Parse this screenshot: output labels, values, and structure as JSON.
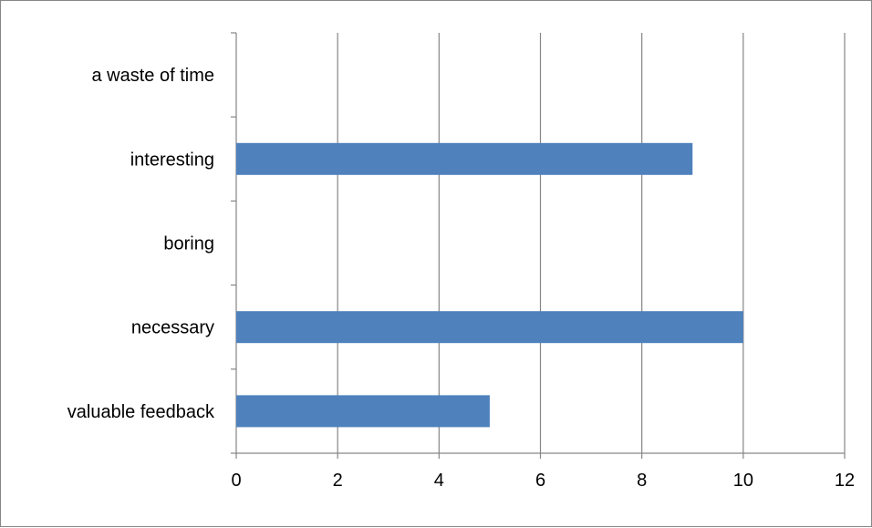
{
  "chart_data": {
    "type": "bar",
    "orientation": "horizontal",
    "title": "",
    "xlabel": "",
    "ylabel": "",
    "categories": [
      "valuable feedback",
      "necessary",
      "boring",
      "interesting",
      "a waste of time"
    ],
    "values": [
      5,
      10,
      0,
      9,
      0
    ],
    "xlim": [
      0,
      12
    ],
    "xticks": [
      0,
      2,
      4,
      6,
      8,
      10,
      12
    ],
    "grid": "vertical",
    "legend": "none",
    "colors": {
      "bar": "#4f81bd",
      "grid": "#868686",
      "axis": "#868686"
    }
  }
}
